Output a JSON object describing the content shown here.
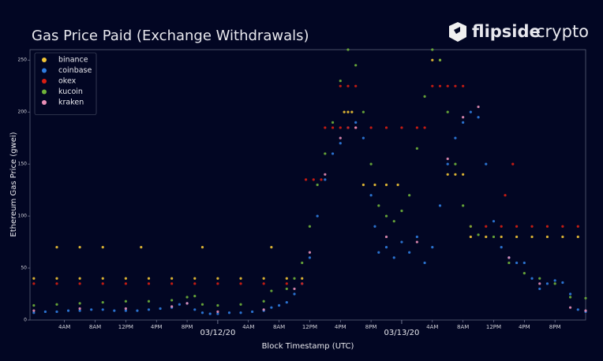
{
  "logo": {
    "bold": "flipside",
    "light": "crypto"
  },
  "chart_data": {
    "type": "scatter",
    "title": "Gas Price Paid (Exchange Withdrawals)",
    "x_label": "Block Timestamp (UTC)",
    "y_label": "Ethereum Gas Price (gwei)",
    "xlim": [
      -0.5,
      72
    ],
    "ylim": [
      0,
      260
    ],
    "xticks": [
      {
        "value": 4,
        "label": "4AM"
      },
      {
        "value": 8,
        "label": "8AM"
      },
      {
        "value": 12,
        "label": "12PM"
      },
      {
        "value": 16,
        "label": "4PM"
      },
      {
        "value": 20,
        "label": "8PM"
      },
      {
        "value": 28,
        "label": "4AM"
      },
      {
        "value": 32,
        "label": "8AM"
      },
      {
        "value": 36,
        "label": "12PM"
      },
      {
        "value": 40,
        "label": "4PM"
      },
      {
        "value": 44,
        "label": "8PM"
      },
      {
        "value": 52,
        "label": "4AM"
      },
      {
        "value": 56,
        "label": "8AM"
      },
      {
        "value": 60,
        "label": "12PM"
      },
      {
        "value": 64,
        "label": "4PM"
      },
      {
        "value": 68,
        "label": "8PM"
      }
    ],
    "date_ticks": [
      {
        "value": 24,
        "label": "03/12/20"
      },
      {
        "value": 48,
        "label": "03/13/20"
      }
    ],
    "yticks": [
      0,
      50,
      100,
      150,
      200,
      250
    ],
    "legend": "upper left",
    "series": [
      {
        "name": "binance",
        "color": "#f2c535",
        "x": [
          0,
          3,
          6,
          9,
          12,
          15,
          18,
          21,
          24,
          27,
          30,
          33,
          35,
          3,
          6,
          9,
          14,
          22,
          31,
          40.5,
          41,
          41.5,
          43,
          44.5,
          46,
          47.5,
          52,
          53,
          54,
          55,
          56,
          57,
          59,
          61,
          63,
          65,
          67,
          69,
          71
        ],
        "values": [
          40,
          40,
          40,
          40,
          40,
          40,
          40,
          40,
          40,
          40,
          40,
          40,
          40,
          70,
          70,
          70,
          70,
          70,
          70,
          200,
          200,
          200,
          130,
          130,
          130,
          130,
          250,
          250,
          140,
          140,
          140,
          80,
          80,
          80,
          80,
          80,
          80,
          80,
          80
        ]
      },
      {
        "name": "coinbase",
        "color": "#2f7de1",
        "x": [
          0,
          1.5,
          3,
          4.5,
          6,
          7.5,
          9,
          10.5,
          12,
          13.5,
          15,
          16.5,
          18,
          19,
          20,
          21,
          22,
          23,
          24,
          25.5,
          27,
          28.5,
          30,
          31,
          32,
          33,
          34,
          35,
          36,
          37,
          38,
          39,
          40,
          41,
          42,
          43,
          44,
          44.5,
          45,
          46,
          47,
          48,
          49,
          50,
          51,
          52,
          53,
          54,
          55,
          56,
          57,
          58,
          59,
          60,
          61,
          62,
          63,
          64,
          65,
          66,
          67,
          68,
          69,
          70,
          71,
          72
        ],
        "values": [
          7,
          8,
          8,
          9,
          9,
          10,
          10,
          9,
          9,
          9,
          10,
          11,
          12,
          15,
          16,
          10,
          7,
          6,
          6,
          7,
          7,
          8,
          9,
          12,
          14,
          17,
          25,
          35,
          60,
          100,
          135,
          160,
          170,
          185,
          190,
          175,
          120,
          90,
          65,
          70,
          60,
          75,
          65,
          80,
          55,
          70,
          110,
          150,
          175,
          190,
          200,
          195,
          150,
          95,
          70,
          60,
          55,
          55,
          40,
          30,
          35,
          38,
          36,
          25,
          10,
          8
        ]
      },
      {
        "name": "okex",
        "color": "#d81e12",
        "x": [
          0,
          3,
          6,
          9,
          12,
          15,
          18,
          21,
          24,
          27,
          30,
          33,
          35,
          35.5,
          36.5,
          37.5,
          38,
          39,
          40,
          41,
          42,
          44,
          46,
          48,
          50,
          51,
          40,
          41,
          42,
          52,
          53,
          54,
          55,
          56,
          57,
          59,
          61,
          63,
          65,
          67,
          69,
          71,
          61.5,
          62.5
        ],
        "values": [
          35,
          35,
          35,
          35,
          35,
          35,
          35,
          35,
          35,
          35,
          35,
          35,
          35,
          135,
          135,
          135,
          185,
          185,
          185,
          185,
          185,
          185,
          185,
          185,
          185,
          185,
          225,
          225,
          225,
          225,
          225,
          225,
          225,
          225,
          90,
          90,
          90,
          90,
          90,
          90,
          90,
          90,
          120,
          150
        ]
      },
      {
        "name": "kucoin",
        "color": "#6fb33a",
        "x": [
          0,
          3,
          6,
          9,
          12,
          15,
          18,
          20,
          21,
          22,
          24,
          27,
          30,
          31,
          33,
          34,
          35,
          36,
          37,
          38,
          39,
          40,
          41,
          42,
          43,
          44,
          45,
          46,
          47,
          48,
          49,
          50,
          51,
          52,
          53,
          54,
          55,
          56,
          57,
          58,
          60,
          62,
          64,
          66,
          68,
          70,
          72
        ],
        "values": [
          14,
          15,
          16,
          17,
          18,
          18,
          19,
          22,
          23,
          15,
          14,
          15,
          18,
          28,
          30,
          40,
          55,
          90,
          130,
          160,
          190,
          230,
          260,
          245,
          200,
          150,
          110,
          100,
          95,
          105,
          120,
          165,
          215,
          260,
          250,
          200,
          150,
          110,
          90,
          82,
          80,
          55,
          45,
          40,
          35,
          22,
          21
        ]
      },
      {
        "name": "kraken",
        "color": "#e98fb8",
        "x": [
          0,
          6,
          12,
          18,
          20,
          24,
          30,
          34,
          36,
          38,
          40,
          42,
          46,
          50,
          54,
          56,
          58,
          62,
          66,
          70,
          72
        ],
        "values": [
          9,
          11,
          11,
          13,
          16,
          8,
          10,
          30,
          65,
          140,
          175,
          185,
          80,
          75,
          155,
          195,
          205,
          60,
          35,
          12,
          9
        ]
      }
    ]
  }
}
